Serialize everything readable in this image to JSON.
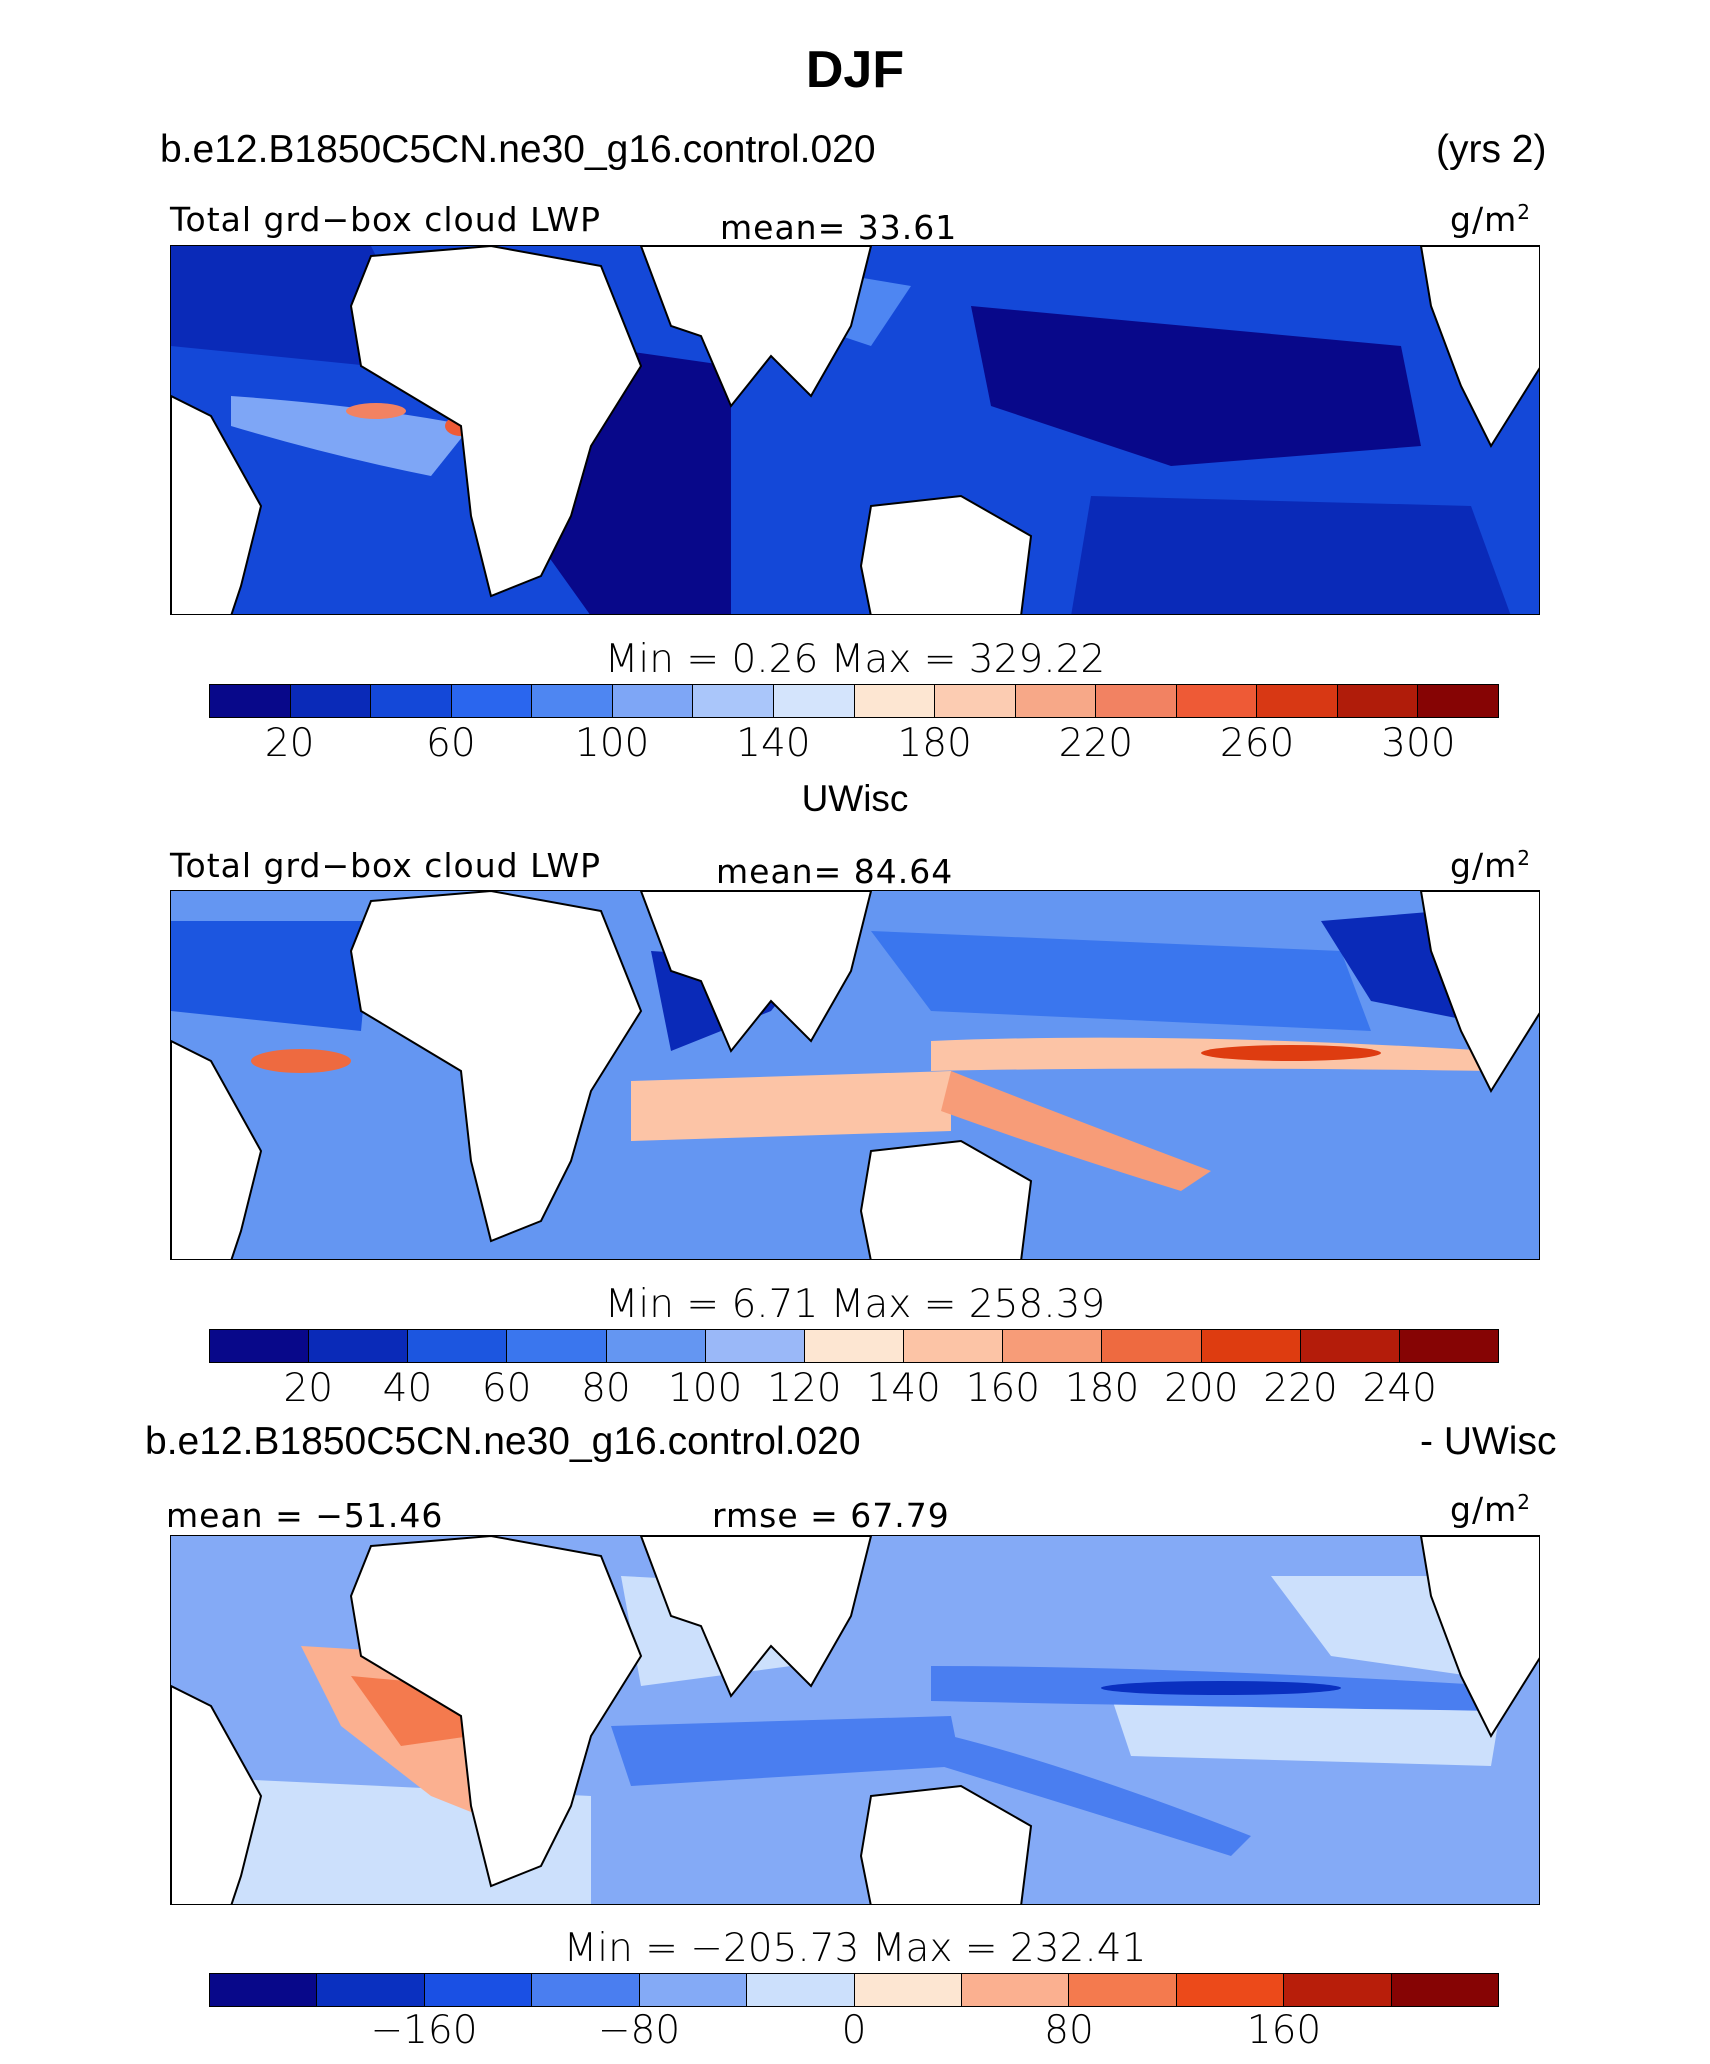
{
  "figure": {
    "title": "DJF",
    "colors": {
      "land": "#ffffff",
      "coast": "#000000"
    }
  },
  "panel1": {
    "case": "b.e12.B1850C5CN.ne30_g16.control.020",
    "years": "(yrs 2)",
    "variable": "Total grd−box cloud LWP",
    "mean_label": "mean=",
    "mean_value": "33.61",
    "units": "g/m",
    "units_exp": "2",
    "minmax": "Min  =     0.26  Max  =  329.22",
    "colorbar": {
      "colors": [
        "#08088a",
        "#0a2ab8",
        "#1448d8",
        "#2a66ee",
        "#4e86f2",
        "#7ea6f6",
        "#aac6fa",
        "#d4e4fc",
        "#fde6d2",
        "#fcccb2",
        "#f7a888",
        "#f28262",
        "#ee5a36",
        "#d83814",
        "#b01c0a",
        "#860404"
      ],
      "ticks": [
        "20",
        "60",
        "100",
        "140",
        "180",
        "220",
        "260",
        "300"
      ]
    }
  },
  "panel2": {
    "source": "UWisc",
    "variable": "Total grd−box cloud LWP",
    "mean_label": "mean=",
    "mean_value": "84.64",
    "units": "g/m",
    "units_exp": "2",
    "minmax": "Min  =     6.71  Max  =  258.39",
    "colorbar": {
      "colors": [
        "#08088a",
        "#0a2ab8",
        "#1c56e0",
        "#3a76ee",
        "#6496f2",
        "#9ab8f8",
        "#fde6d2",
        "#fcc4a6",
        "#f79c78",
        "#ee6a40",
        "#de3c10",
        "#b41c0a",
        "#860404"
      ],
      "ticks": [
        "20",
        "40",
        "60",
        "80",
        "100",
        "120",
        "140",
        "160",
        "180",
        "200",
        "220",
        "240"
      ]
    }
  },
  "panel3": {
    "case": "b.e12.B1850C5CN.ne30_g16.control.020",
    "minus": "- UWisc",
    "mean_label": "mean = ",
    "mean_value": "−51.46",
    "rmse_label": "rmse  = ",
    "rmse_value": "67.79",
    "units": "g/m",
    "units_exp": "2",
    "minmax": "Min  =  −205.73  Max  =  232.41",
    "colorbar": {
      "colors": [
        "#08088a",
        "#0a30c0",
        "#1a50e4",
        "#4a7ef0",
        "#84aaf6",
        "#cce0fc",
        "#fde6d2",
        "#fbb090",
        "#f47a4e",
        "#ec4a1a",
        "#b81e0a",
        "#860404"
      ],
      "ticks": [
        "−160",
        "−80",
        "0",
        "80",
        "160"
      ]
    }
  }
}
